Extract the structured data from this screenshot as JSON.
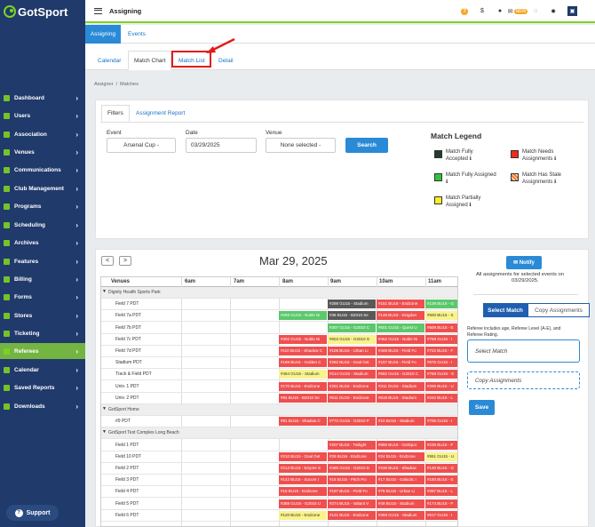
{
  "brand": {
    "logo": "GotSport"
  },
  "sidebar": {
    "items": [
      {
        "label": "Dashboard",
        "active": false
      },
      {
        "label": "Users",
        "active": false
      },
      {
        "label": "Association",
        "active": false
      },
      {
        "label": "Venues",
        "active": false
      },
      {
        "label": "Communications",
        "active": false
      },
      {
        "label": "Club Management",
        "active": false
      },
      {
        "label": "Programs",
        "active": false
      },
      {
        "label": "Scheduling",
        "active": false
      },
      {
        "label": "Archives",
        "active": false
      },
      {
        "label": "Features",
        "active": false
      },
      {
        "label": "Billing",
        "active": false
      },
      {
        "label": "Forms",
        "active": false
      },
      {
        "label": "Stores",
        "active": false
      },
      {
        "label": "Ticketing",
        "active": false
      },
      {
        "label": "Referees",
        "active": true
      },
      {
        "label": "Calendar",
        "active": false
      },
      {
        "label": "Saved Reports",
        "active": false
      },
      {
        "label": "Downloads",
        "active": false
      }
    ],
    "support": "Support"
  },
  "topbar": {
    "title": "Assigning",
    "badge": "NEW"
  },
  "tabs_top": [
    {
      "label": "Assigning",
      "active": true
    },
    {
      "label": "Events",
      "active": false
    }
  ],
  "tabs_sub": [
    {
      "label": "Calendar",
      "active": false
    },
    {
      "label": "Match Chart",
      "active": true
    },
    {
      "label": "Match List",
      "active": false
    },
    {
      "label": "Detail",
      "active": false
    }
  ],
  "breadcrumb": {
    "a": "Assignor",
    "b": "Matches"
  },
  "filters": {
    "tab_filters": "Filters",
    "tab_report": "Assignment Report",
    "event_label": "Event",
    "event_value": "Arsenal Cup -",
    "date_label": "Date",
    "date_value": "03/29/2025",
    "venue_label": "Venue",
    "venue_value": "None selected -",
    "search": "Search"
  },
  "legend": {
    "title": "Match Legend",
    "items": [
      {
        "label": "Match Fully Accepted ℹ",
        "color": "#1e3d2a"
      },
      {
        "label": "Match Needs Assignments ℹ",
        "color": "#f32b1c"
      },
      {
        "label": "Match Fully Assigned ℹ",
        "color": "#2fc43c"
      },
      {
        "label": "Match Has Stale Assignments ℹ",
        "color": "#f2762b"
      },
      {
        "label": "Match Partially Assigned ℹ",
        "color": "#f8ee29"
      }
    ]
  },
  "chart": {
    "date": "Mar 29, 2025",
    "prev": "<",
    "next": ">",
    "headers": {
      "venues": "Venues",
      "times": [
        "6am",
        "7am",
        "8am",
        "9am",
        "10am",
        "11am"
      ]
    },
    "rows": [
      {
        "name": "Dignity Health Sports Park",
        "group": true
      },
      {
        "name": "Field 7 PDT",
        "blocks": [
          {
            "c": "dark",
            "t": "#298 GU15 - Stadium"
          },
          {
            "c": "red",
            "t": "#151 BU18 - Endzone"
          },
          {
            "c": "green",
            "t": "#138 BU16 - G"
          }
        ]
      },
      {
        "name": "Field 7a PDT",
        "blocks": [
          {
            "c": "green",
            "t": "#259 GU15 - Noble Ni"
          },
          {
            "c": "dark",
            "t": "#36 BU15 - B2010 Se"
          },
          {
            "c": "red",
            "t": "#148 BU15 - Kingdon"
          },
          {
            "c": "yellow",
            "t": "#500 BU15 - S"
          }
        ]
      },
      {
        "name": "Field 7b PDT",
        "blocks": [
          {
            "c": "green",
            "t": "#307 GU15 - G2010 C"
          },
          {
            "c": "green",
            "t": "#601 GU15 - Quest U"
          },
          {
            "c": "red",
            "t": "#509 BU15 - E"
          }
        ]
      },
      {
        "name": "Field 7c PDT",
        "blocks": [
          {
            "c": "red",
            "t": "#302 GU15 - Noble Ni"
          },
          {
            "c": "yellow",
            "t": "#603 GU15 - G2010 G"
          },
          {
            "c": "red",
            "t": "#452 GU15 - Noble Ni"
          },
          {
            "c": "red",
            "t": "#759 GU15 - I"
          }
        ]
      },
      {
        "name": "Field 7d PDT",
        "blocks": [
          {
            "c": "red",
            "t": "#110 BU15 - Shadow C"
          },
          {
            "c": "red",
            "t": "#108 BU16 - Urban Li"
          },
          {
            "c": "red",
            "t": "#408 BU15 - Field Fo"
          },
          {
            "c": "red",
            "t": "#722 BU15 - F"
          }
        ]
      },
      {
        "name": "Stadium PDT",
        "blocks": [
          {
            "c": "red",
            "t": "#169 BU16 - Golden C"
          },
          {
            "c": "red",
            "t": "#282 BU15 - Goal Get"
          },
          {
            "c": "red",
            "t": "#107 BU16 - Field Fo"
          },
          {
            "c": "red",
            "t": "#675 GU15 - I"
          }
        ]
      },
      {
        "name": "Track & Field PDT",
        "blocks": [
          {
            "c": "yellow",
            "t": "#464 GU15 - Stadium"
          },
          {
            "c": "red",
            "t": "#214 GU15 - Stadium"
          },
          {
            "c": "red",
            "t": "#582 GU15 - G2010 C"
          },
          {
            "c": "red",
            "t": "#768 GU15 - S"
          }
        ]
      },
      {
        "name": "Univ. 1 PDT",
        "blocks": [
          {
            "c": "red",
            "t": "#170 BU16 - Endzone"
          },
          {
            "c": "red",
            "t": "#251 BU16 - Endzone"
          },
          {
            "c": "red",
            "t": "#311 GU15 - Stadium"
          },
          {
            "c": "red",
            "t": "#299 BU15 - U"
          }
        ]
      },
      {
        "name": "Univ. 2 PDT",
        "blocks": [
          {
            "c": "red",
            "t": "#84 BU15 - B2010 Se"
          },
          {
            "c": "red",
            "t": "#611 GU15 - Endzone"
          },
          {
            "c": "red",
            "t": "#618 BU15 - Stadium"
          },
          {
            "c": "red",
            "t": "#242 BU15 - L"
          }
        ]
      },
      {
        "name": "GotSport Home",
        "group": true
      },
      {
        "name": "#9 PDT",
        "blocks": [
          {
            "c": "red",
            "t": "#81 BU16 - Shadow C"
          },
          {
            "c": "red",
            "t": "#772 GU15 - G2010 P"
          },
          {
            "c": "red",
            "t": "#10 BU16 - Stadium"
          },
          {
            "c": "red",
            "t": "#705 GU15 - I"
          }
        ]
      },
      {
        "name": "GotSport Test Complex Long Beach",
        "group": true
      },
      {
        "name": "Field 1 PDT",
        "blocks": [
          {
            "c": "red",
            "t": "#207 BU15 - Twilight"
          },
          {
            "c": "red",
            "t": "#886 BU16 - GotSpor"
          },
          {
            "c": "red",
            "t": "#235 BU15 - F"
          }
        ]
      },
      {
        "name": "Field 10 PDT",
        "blocks": [
          {
            "c": "red",
            "t": "#210 BU15 - Goal Get"
          },
          {
            "c": "red",
            "t": "#29 BU16 - Endzone"
          },
          {
            "c": "red",
            "t": "#24 BU15 - Endzone"
          },
          {
            "c": "yellow",
            "t": "#551 GU15 - U"
          }
        ]
      },
      {
        "name": "Field 2 PDT",
        "blocks": [
          {
            "c": "red",
            "t": "#213 BU15 - Empire S"
          },
          {
            "c": "red",
            "t": "#485 GU15 - G2010 D"
          },
          {
            "c": "red",
            "t": "#236 BU15 - Shadow"
          },
          {
            "c": "red",
            "t": "#130 BU16 - G"
          }
        ]
      },
      {
        "name": "Field 3 PDT",
        "blocks": [
          {
            "c": "red",
            "t": "#142 BU16 - Soccer I"
          },
          {
            "c": "red",
            "t": "#16 BU15 - Pitch Pio"
          },
          {
            "c": "red",
            "t": "#17 BU15 - Galactic I"
          },
          {
            "c": "red",
            "t": "#180 BU16 - E"
          }
        ]
      },
      {
        "name": "Field 4 PDT",
        "blocks": [
          {
            "c": "red",
            "t": "#18 BU15 - Endzone"
          },
          {
            "c": "red",
            "t": "#197 BU16 - Field Fo"
          },
          {
            "c": "red",
            "t": "#78 BU15 - Urban Li"
          },
          {
            "c": "red",
            "t": "#287 BU15 - L"
          }
        ]
      },
      {
        "name": "Field 5 PDT",
        "blocks": [
          {
            "c": "red",
            "t": "#389 GU15 - G2010 U"
          },
          {
            "c": "red",
            "t": "#274 BU15 - Valiant V"
          },
          {
            "c": "red",
            "t": "#49 BU15 - Stadium"
          },
          {
            "c": "red",
            "t": "#174 BU15 - F"
          }
        ]
      },
      {
        "name": "Field 6 PDT",
        "blocks": [
          {
            "c": "yellow",
            "t": "#120 BU16 - Endzone"
          },
          {
            "c": "red",
            "t": "#121 BU16 - Endzone"
          },
          {
            "c": "red",
            "t": "#359 GU15 - Stadium"
          },
          {
            "c": "red",
            "t": "#617 GU15 - I"
          }
        ]
      }
    ]
  },
  "right": {
    "notify": "Notify",
    "info": [
      "All assignments for selected events on",
      "03/29/2025."
    ],
    "select_match": "Select Match",
    "copy_assignments": "Copy Assignments",
    "note": [
      "Referee includes age, Referee Level (A-E), and",
      "Referee Rating."
    ],
    "select_placeholder": "Select Match",
    "copy_placeholder": "Copy Assignments",
    "save": "Save"
  }
}
